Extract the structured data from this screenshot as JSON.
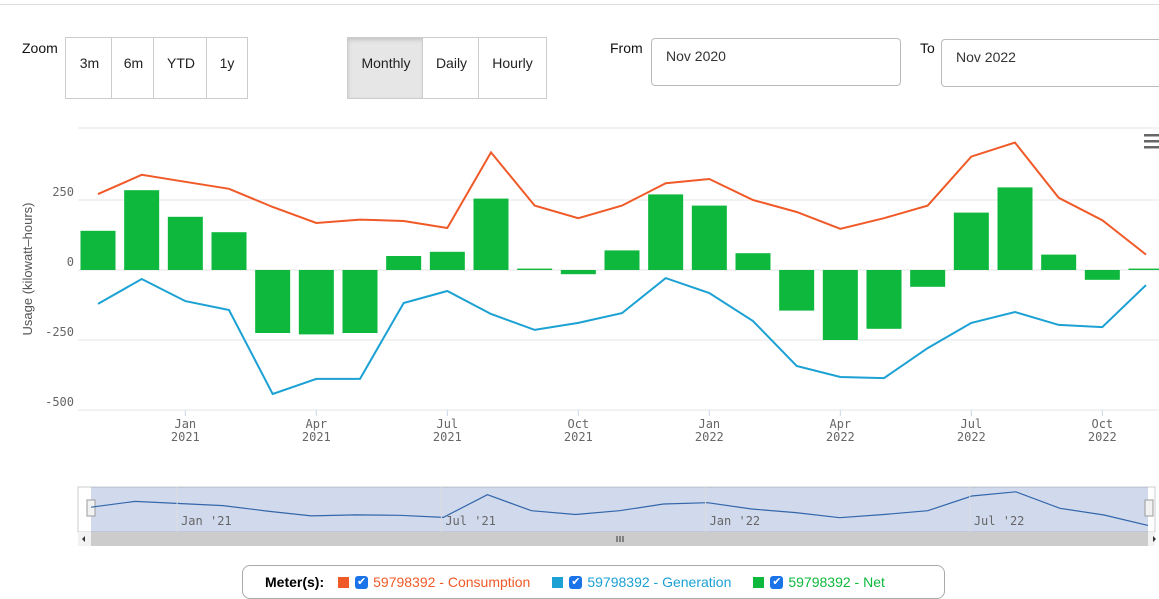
{
  "ui": {
    "zoom_label": "Zoom",
    "zoom_buttons": [
      "3m",
      "6m",
      "YTD",
      "1y"
    ],
    "period_buttons": [
      "Monthly",
      "Daily",
      "Hourly"
    ],
    "selected_period": "Monthly",
    "from_label": "From",
    "from_value": "Nov 2020",
    "to_label": "To",
    "to_value": "Nov 2022",
    "legend_label": "Meter(s):",
    "navigator_labels": [
      "Jan '21",
      "Jul '21",
      "Jan '22",
      "Jul '22"
    ]
  },
  "chart_data": {
    "type": "bar",
    "y_label": "Usage (kilowatt–hours)",
    "categories": [
      null,
      null,
      "Jan 2021",
      null,
      null,
      "Apr 2021",
      null,
      null,
      "Jul 2021",
      null,
      null,
      "Oct 2021",
      null,
      null,
      "Jan 2022",
      null,
      null,
      "Apr 2022",
      null,
      null,
      "Jul 2022",
      null,
      null,
      "Oct 2022",
      null
    ],
    "ylim": [
      -500,
      500
    ],
    "yticks": [
      -500,
      -250,
      0,
      250
    ],
    "grid": true,
    "series": [
      {
        "name": "59798392 - Consumption",
        "type": "line",
        "color": "#f05a28",
        "values": [
          271,
          340,
          315,
          290,
          225,
          168,
          180,
          175,
          150,
          420,
          230,
          185,
          230,
          310,
          325,
          250,
          207,
          147,
          185,
          230,
          405,
          455,
          258,
          178,
          55
        ]
      },
      {
        "name": "59798392 - Generation",
        "type": "line",
        "color": "#1ba1d3",
        "values": [
          -121,
          -32,
          -111,
          -143,
          -443,
          -389,
          -389,
          -118,
          -75,
          -157,
          -214,
          -189,
          -154,
          -29,
          -82,
          -182,
          -343,
          -382,
          -386,
          -279,
          -189,
          -150,
          -196,
          -204,
          -54
        ]
      },
      {
        "name": "59798392 - Net",
        "type": "bar",
        "color": "#0db83c",
        "values": [
          140,
          285,
          190,
          135,
          -225,
          -230,
          -225,
          50,
          65,
          255,
          5,
          -15,
          70,
          270,
          230,
          60,
          -145,
          -250,
          -210,
          -60,
          205,
          295,
          55,
          -35,
          5
        ]
      }
    ]
  }
}
